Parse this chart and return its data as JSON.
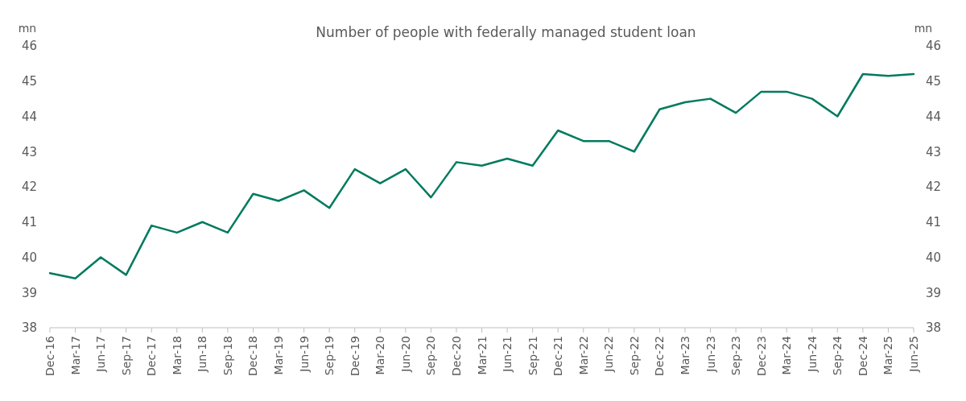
{
  "chart_data": {
    "type": "line",
    "title": "Number of people with federally managed student loan",
    "ylabel": "mn",
    "y2label": "mn",
    "categories": [
      "Dec-16",
      "Mar-17",
      "Jun-17",
      "Sep-17",
      "Dec-17",
      "Mar-18",
      "Jun-18",
      "Sep-18",
      "Dec-18",
      "Mar-19",
      "Jun-19",
      "Sep-19",
      "Dec-19",
      "Mar-20",
      "Jun-20",
      "Sep-20",
      "Dec-20",
      "Mar-21",
      "Jun-21",
      "Sep-21",
      "Dec-21",
      "Mar-22",
      "Jun-22",
      "Sep-22",
      "Dec-22",
      "Mar-23",
      "Jun-23",
      "Sep-23",
      "Dec-23",
      "Mar-24",
      "Jun-24",
      "Sep-24",
      "Dec-24",
      "Mar-25",
      "Jun-25"
    ],
    "series": [
      {
        "color": "#007a5e",
        "values": [
          39.55,
          39.4,
          40.0,
          39.5,
          40.9,
          40.7,
          41.0,
          40.7,
          41.8,
          41.6,
          41.9,
          41.4,
          42.5,
          42.1,
          42.5,
          41.7,
          42.7,
          42.6,
          42.8,
          42.6,
          43.6,
          43.3,
          43.3,
          43.0,
          44.2,
          44.4,
          44.5,
          44.1,
          44.7,
          44.7,
          44.5,
          44.0,
          45.2,
          45.15,
          45.2
        ]
      }
    ],
    "ylim": [
      38,
      46
    ],
    "yticks": [
      38,
      39,
      40,
      41,
      42,
      43,
      44,
      45,
      46
    ],
    "y2lim": [
      38,
      46
    ],
    "y2ticks": [
      38,
      39,
      40,
      41,
      42,
      43,
      44,
      45,
      46
    ],
    "grid": false,
    "marker": "none",
    "line_style": "solid"
  }
}
